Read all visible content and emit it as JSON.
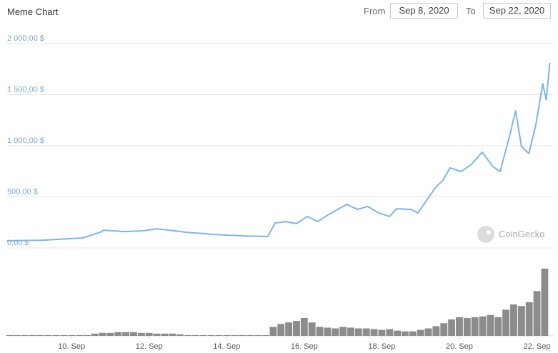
{
  "chart_data": {
    "type": "line",
    "title": "Meme Chart",
    "range_picker": {
      "from_label": "From",
      "from_value": "Sep 8, 2020",
      "to_label": "To",
      "to_value": "Sep 22, 2020"
    },
    "watermark": "CoinGecko",
    "x": [
      8.34,
      9.26,
      10.28,
      10.74,
      10.83,
      11.38,
      11.84,
      12.21,
      12.95,
      13.68,
      14.42,
      15.06,
      15.25,
      15.52,
      15.8,
      16.08,
      16.35,
      16.63,
      17.09,
      17.37,
      17.64,
      17.92,
      18.2,
      18.38,
      18.75,
      18.93,
      19.12,
      19.39,
      19.58,
      19.76,
      20.04,
      20.31,
      20.59,
      20.86,
      21.05,
      21.27,
      21.45,
      21.6,
      21.79,
      21.97,
      22.15,
      22.24,
      22.33
    ],
    "series": [
      {
        "color": "#7cb5ec",
        "values": [
          70,
          76,
          98,
          154,
          174,
          160,
          168,
          188,
          154,
          132,
          118,
          112,
          244,
          258,
          238,
          308,
          258,
          328,
          426,
          378,
          406,
          342,
          308,
          384,
          378,
          342,
          448,
          594,
          664,
          784,
          748,
          818,
          938,
          798,
          748,
          1062,
          1342,
          994,
          924,
          1202,
          1608,
          1448,
          1812
        ]
      }
    ],
    "volume": {
      "color": "#8c8c8c",
      "x": [
        8.4,
        8.6,
        8.8,
        9.0,
        9.2,
        9.4,
        9.6,
        9.8,
        10.0,
        10.2,
        10.4,
        10.6,
        10.8,
        11.0,
        11.2,
        11.4,
        11.6,
        11.8,
        12.0,
        12.2,
        12.4,
        12.6,
        12.8,
        13.0,
        13.2,
        13.4,
        13.6,
        13.8,
        14.0,
        14.2,
        14.4,
        14.6,
        14.8,
        15.0,
        15.2,
        15.4,
        15.6,
        15.8,
        16.0,
        16.2,
        16.4,
        16.6,
        16.8,
        17.0,
        17.2,
        17.4,
        17.6,
        17.8,
        18.0,
        18.2,
        18.4,
        18.6,
        18.8,
        19.0,
        19.2,
        19.4,
        19.6,
        19.8,
        20.0,
        20.2,
        20.4,
        20.6,
        20.8,
        21.0,
        21.2,
        21.4,
        21.6,
        21.8,
        22.0,
        22.2
      ],
      "values": [
        1,
        1,
        1,
        1,
        1,
        1,
        1,
        1,
        1,
        1,
        1,
        3,
        4,
        4,
        5,
        5,
        5,
        4,
        4,
        3,
        3,
        3,
        2,
        1,
        1,
        1,
        1,
        1,
        1,
        1,
        1,
        1,
        1,
        1,
        12,
        16,
        18,
        20,
        24,
        18,
        12,
        11,
        10,
        12,
        11,
        10,
        10,
        9,
        8,
        9,
        7,
        6,
        6,
        8,
        10,
        13,
        17,
        22,
        25,
        24,
        25,
        26,
        28,
        25,
        35,
        42,
        40,
        45,
        60,
        90
      ]
    },
    "xlim": [
      8.34,
      22.34
    ],
    "xticks": [
      {
        "value": 10,
        "label": "10. Sep"
      },
      {
        "value": 12,
        "label": "12. Sep"
      },
      {
        "value": 14,
        "label": "14. Sep"
      },
      {
        "value": 16,
        "label": "16. Sep"
      },
      {
        "value": 18,
        "label": "18. Sep"
      },
      {
        "value": 20,
        "label": "20. Sep"
      },
      {
        "value": 22,
        "label": "22. Sep"
      }
    ],
    "ylim": [
      0,
      2000
    ],
    "yticks": [
      {
        "value": 0,
        "label": "0,00 $"
      },
      {
        "value": 500,
        "label": "500,00 $"
      },
      {
        "value": 1000,
        "label": "1 000,00 $"
      },
      {
        "value": 1500,
        "label": "1 500,00 $"
      },
      {
        "value": 2000,
        "label": "2 000,00 $"
      }
    ],
    "grid": true
  }
}
